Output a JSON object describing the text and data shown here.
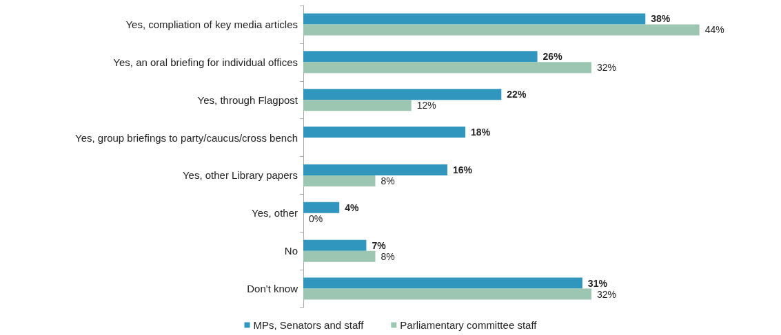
{
  "chart_data": {
    "type": "bar",
    "orientation": "horizontal",
    "tick_labels": "y",
    "categories": [
      "Yes, compliation of key media articles",
      "Yes, an oral briefing for individual offices",
      "Yes, through Flagpost",
      "Yes, group briefings to party/caucus/cross bench",
      "Yes, other Library papers",
      "Yes, other",
      "No",
      "Don't know"
    ],
    "series": [
      {
        "name": "MPs, Senators and staff",
        "color": "#3096bd",
        "values": [
          38,
          26,
          22,
          18,
          16,
          4,
          7,
          31
        ],
        "value_labels": [
          "38%",
          "26%",
          "22%",
          "18%",
          "16%",
          "4%",
          "7%",
          "31%"
        ]
      },
      {
        "name": "Parliamentary committee staff",
        "color": "#9dc6b2",
        "values": [
          44,
          32,
          12,
          null,
          8,
          0,
          8,
          32
        ],
        "value_labels": [
          "44%",
          "32%",
          "12%",
          null,
          "8%",
          "0%",
          "8%",
          "32%"
        ]
      }
    ],
    "legend": "bottom",
    "grid": false
  }
}
